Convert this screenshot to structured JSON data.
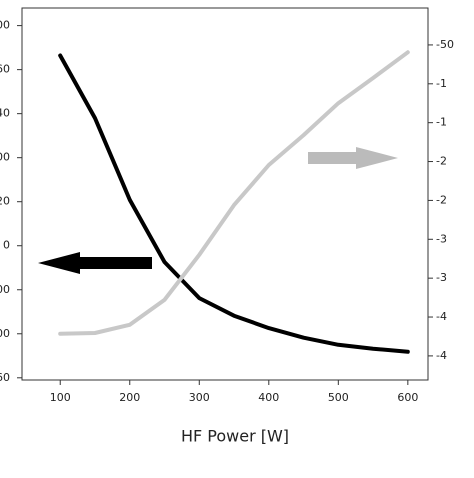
{
  "chart_data": {
    "type": "line",
    "xlabel": "HF Power [W]",
    "x": [
      100,
      150,
      200,
      250,
      300,
      350,
      400,
      450,
      500,
      550,
      600
    ],
    "xlim": [
      45,
      629
    ],
    "xticks": [
      100,
      200,
      300,
      400,
      500,
      600
    ],
    "ylim": [
      -0.05,
      8.4
    ],
    "yticks": [
      {
        "value": 0,
        "label": "60"
      },
      {
        "value": 1,
        "label": "00"
      },
      {
        "value": 2,
        "label": "00"
      },
      {
        "value": 3,
        "label": "0"
      },
      {
        "value": 4,
        "label": "20"
      },
      {
        "value": 5,
        "label": "00"
      },
      {
        "value": 6,
        "label": "40"
      },
      {
        "value": 7,
        "label": "60"
      },
      {
        "value": 8,
        "label": "00"
      }
    ],
    "y2lim": [
      -0.62,
      8.95
    ],
    "y2ticks": [
      {
        "value": 0,
        "label": "-4"
      },
      {
        "value": 1,
        "label": "-4"
      },
      {
        "value": 2,
        "label": "-3"
      },
      {
        "value": 3,
        "label": "-3"
      },
      {
        "value": 4,
        "label": "-2"
      },
      {
        "value": 5,
        "label": "-2"
      },
      {
        "value": 6,
        "label": "-1"
      },
      {
        "value": 7,
        "label": "-1"
      },
      {
        "value": 8,
        "label": "-50"
      }
    ],
    "series": [
      {
        "color": "#000000",
        "values": [
          7.32,
          5.9,
          4.04,
          2.63,
          1.81,
          1.41,
          1.13,
          0.91,
          0.75,
          0.66,
          0.59
        ]
      },
      {
        "color": "#c8c8c8",
        "axis": "y2",
        "values": [
          0.57,
          0.59,
          0.8,
          1.44,
          2.6,
          3.88,
          4.91,
          5.68,
          6.5,
          7.15,
          7.81
        ]
      }
    ]
  }
}
